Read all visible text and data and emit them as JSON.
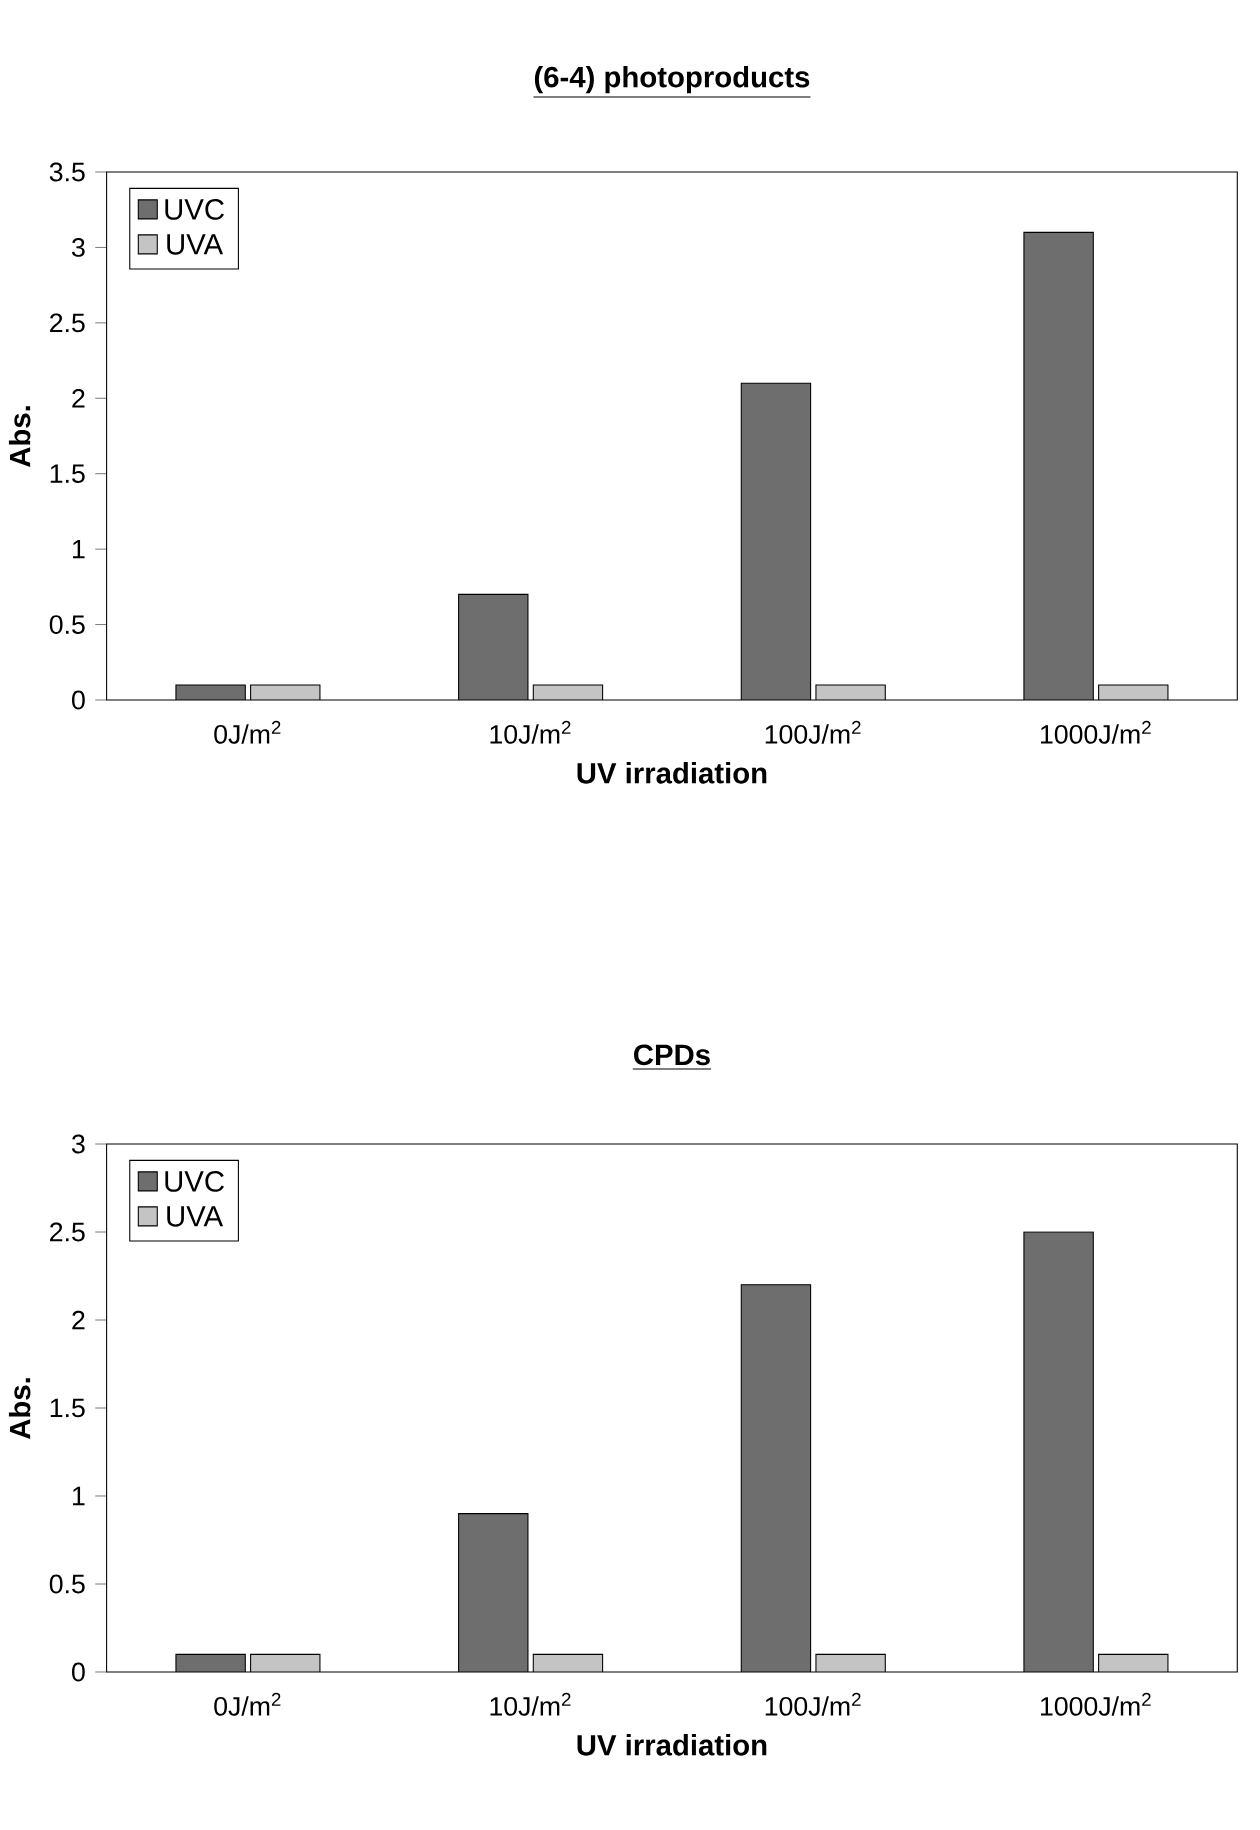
{
  "chart_data": [
    {
      "type": "bar",
      "title": "(6-4) photoproducts",
      "xlabel": "UV irradiation",
      "ylabel": "Abs.",
      "categories": [
        "0J/m$^{2}$",
        "10J/m$^{2}$",
        "100J/m$^{2}$",
        "1000J/m$^{2}$"
      ],
      "series": [
        {
          "name": "UVC",
          "color": "#6e6e6e",
          "values": [
            0.1,
            0.7,
            2.1,
            3.1
          ]
        },
        {
          "name": "UVA",
          "color": "#c4c4c4",
          "values": [
            0.1,
            0.1,
            0.1,
            0.1
          ]
        }
      ],
      "ylim": [
        0,
        3.5
      ],
      "yticks": [
        0,
        0.5,
        1,
        1.5,
        2,
        2.5,
        3,
        3.5
      ],
      "legend": "top left",
      "grid": false
    },
    {
      "type": "bar",
      "title": "CPDs",
      "xlabel": "UV irradiation",
      "ylabel": "Abs.",
      "categories": [
        "0J/m$^{2}$",
        "10J/m$^{2}$",
        "100J/m$^{2}$",
        "1000J/m$^{2}$"
      ],
      "series": [
        {
          "name": "UVC",
          "color": "#6e6e6e",
          "values": [
            0.1,
            0.9,
            2.2,
            2.5
          ]
        },
        {
          "name": "UVA",
          "color": "#c4c4c4",
          "values": [
            0.1,
            0.1,
            0.1,
            0.1
          ]
        }
      ],
      "ylim": [
        0,
        3
      ],
      "yticks": [
        0,
        0.5,
        1,
        1.5,
        2,
        2.5,
        3
      ],
      "legend": "top left",
      "grid": false
    }
  ]
}
